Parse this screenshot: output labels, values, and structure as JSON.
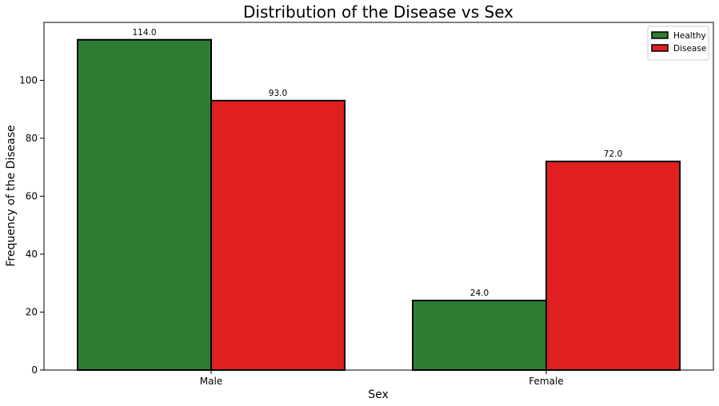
{
  "chart_data": {
    "type": "bar",
    "title": "Distribution of the Disease vs Sex",
    "xlabel": "Sex",
    "ylabel": "Frequency of the Disease",
    "categories": [
      "Male",
      "Female"
    ],
    "series": [
      {
        "name": "Healthy",
        "values": [
          114.0,
          24.0
        ],
        "color": "#2e7d32",
        "labels": [
          "114.0",
          "24.0"
        ]
      },
      {
        "name": "Disease",
        "values": [
          93.0,
          72.0
        ],
        "color": "#e02020",
        "labels": [
          "93.0",
          "72.0"
        ]
      }
    ],
    "ylim": [
      0,
      120
    ],
    "yticks": [
      0,
      20,
      40,
      60,
      80,
      100
    ],
    "grid": false,
    "legend_position": "top-right"
  }
}
